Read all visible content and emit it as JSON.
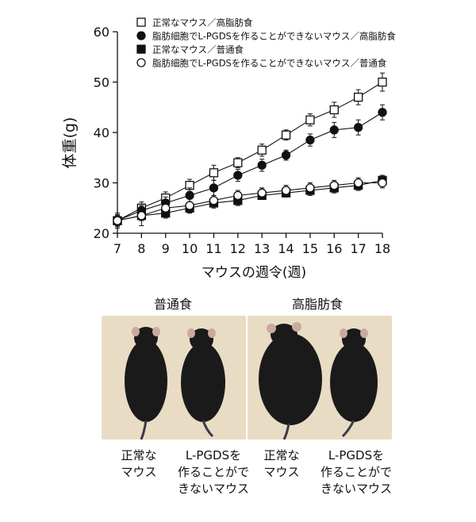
{
  "chart_data": {
    "type": "line",
    "ylabel": "体重(g)",
    "xlabel": "マウスの週令(週)",
    "xlim": [
      7,
      18
    ],
    "ylim": [
      20,
      60
    ],
    "x_ticks": [
      7,
      8,
      9,
      10,
      11,
      12,
      13,
      14,
      15,
      16,
      17,
      18
    ],
    "y_ticks": [
      20,
      30,
      40,
      50,
      60
    ],
    "grid": false,
    "legend_position": "top-left",
    "series": [
      {
        "name": "正常なマウス／高脂肪食",
        "marker": "open-square",
        "x": [
          7,
          8,
          9,
          10,
          11,
          12,
          13,
          14,
          15,
          16,
          17,
          18
        ],
        "y": [
          22.5,
          25.0,
          27.0,
          29.5,
          32.0,
          34.0,
          36.5,
          39.5,
          42.5,
          44.5,
          47.0,
          50.0
        ],
        "err": [
          1.5,
          1.2,
          1.2,
          1.2,
          1.5,
          1.0,
          1.2,
          1.0,
          1.2,
          1.5,
          1.5,
          1.8
        ]
      },
      {
        "name": "脂肪細胞でL-PGDSを作ることができないマウス／高脂肪食",
        "marker": "filled-circle",
        "x": [
          7,
          8,
          9,
          10,
          11,
          12,
          13,
          14,
          15,
          16,
          17,
          18
        ],
        "y": [
          22.5,
          24.5,
          26.0,
          27.5,
          29.0,
          31.5,
          33.5,
          35.5,
          38.5,
          40.5,
          41.0,
          44.0
        ],
        "err": [
          1.0,
          1.0,
          1.2,
          1.5,
          1.5,
          1.2,
          1.2,
          1.0,
          1.2,
          1.5,
          1.5,
          1.5
        ]
      },
      {
        "name": "正常なマウス／普通食",
        "marker": "filled-square",
        "x": [
          7,
          8,
          9,
          10,
          11,
          12,
          13,
          14,
          15,
          16,
          17,
          18
        ],
        "y": [
          22.5,
          23.5,
          24.0,
          25.0,
          26.0,
          26.5,
          27.5,
          28.0,
          28.5,
          29.0,
          29.5,
          30.5
        ],
        "err": [
          1.0,
          1.0,
          1.0,
          1.0,
          1.0,
          1.0,
          0.8,
          0.8,
          1.0,
          1.0,
          1.0,
          1.0
        ]
      },
      {
        "name": "脂肪細胞でL-PGDSを作ることができないマウス／普通食",
        "marker": "open-circle",
        "x": [
          7,
          8,
          9,
          10,
          11,
          12,
          13,
          14,
          15,
          16,
          17,
          18
        ],
        "y": [
          22.5,
          23.5,
          25.0,
          25.5,
          26.5,
          27.5,
          28.0,
          28.5,
          29.0,
          29.5,
          30.0,
          30.0
        ],
        "err": [
          1.2,
          2.0,
          1.5,
          1.5,
          1.0,
          1.0,
          1.0,
          1.0,
          1.0,
          1.0,
          1.0,
          1.0
        ]
      }
    ]
  },
  "photos": {
    "left_title": "普通食",
    "right_title": "高脂肪食",
    "captions": [
      [
        "正常な",
        "マウス"
      ],
      [
        "L-PGDSを",
        "作ることがで",
        "きないマウス"
      ],
      [
        "正常な",
        "マウス"
      ],
      [
        "L-PGDSを",
        "作ることがで",
        "きないマウス"
      ]
    ],
    "background_color": "#e8dcc4",
    "mouse_color": "#1a1a1a"
  }
}
